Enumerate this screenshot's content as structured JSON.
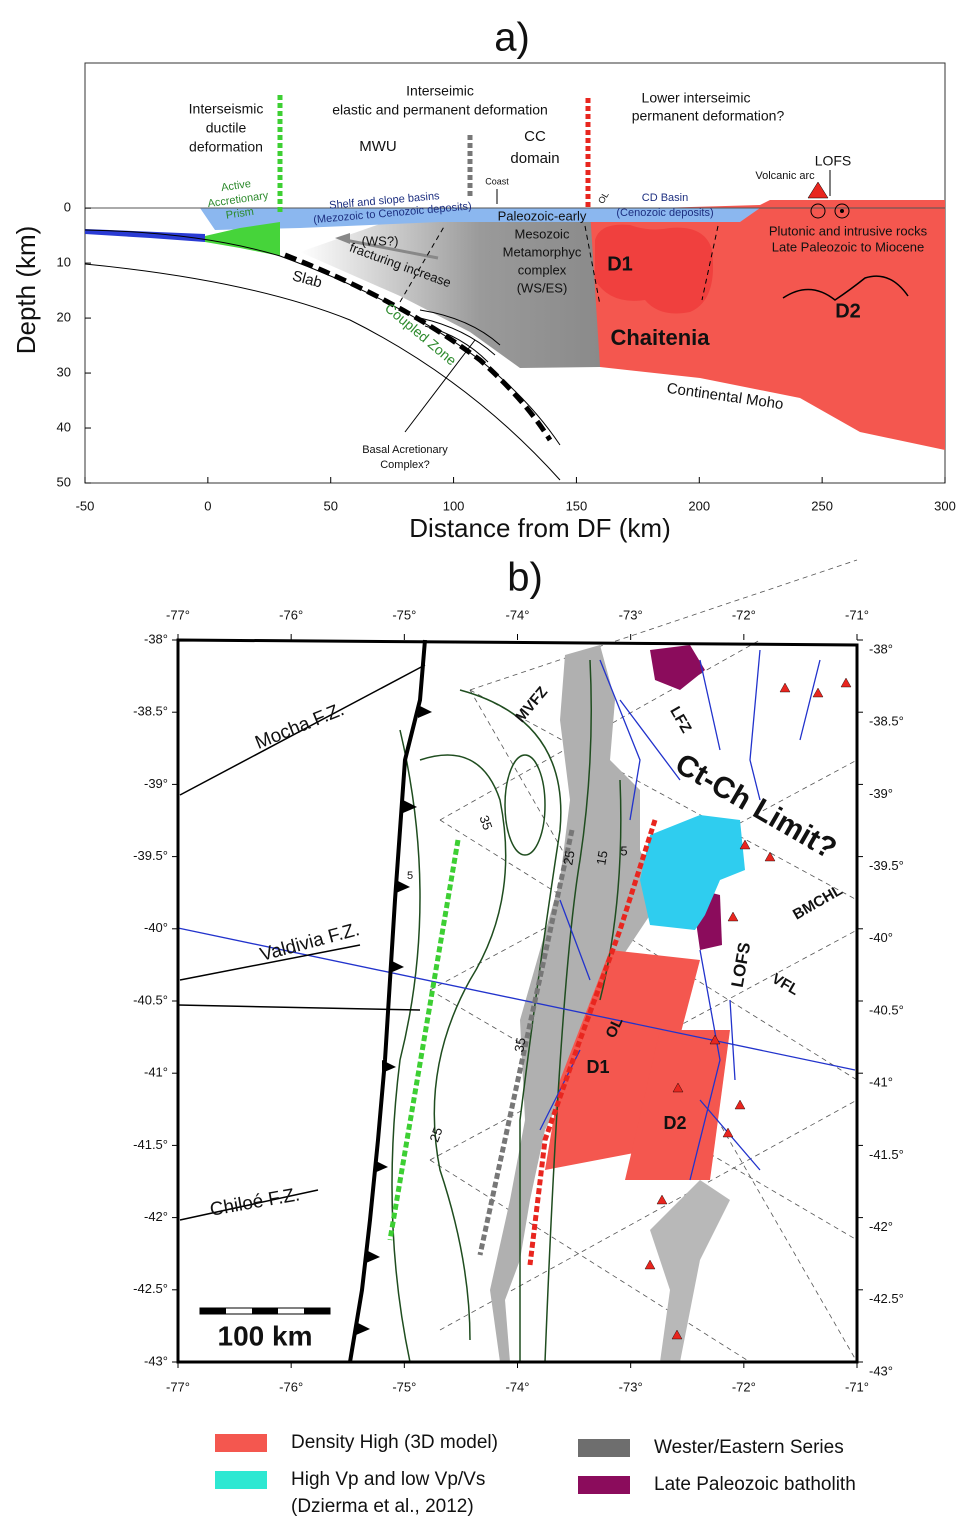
{
  "panel_a": {
    "label": "a)",
    "xlabel": "Distance from DF (km)",
    "ylabel": "Depth (km)",
    "xlim": [
      -50,
      300
    ],
    "ylim": [
      -26.4,
      50
    ],
    "xticks": [
      -50,
      0,
      50,
      100,
      150,
      200,
      250,
      300
    ],
    "yticks": [
      0,
      10,
      20,
      30,
      40,
      50
    ],
    "texts": {
      "ductile": [
        "Interseismic",
        "ductile",
        "deformation"
      ],
      "elastic": [
        "Interseimic",
        "elastic and permanent deformation"
      ],
      "mwu": "MWU",
      "cc": [
        "CC",
        "domain"
      ],
      "lower": [
        "Lower interseimic",
        "permanent deformation?"
      ],
      "lofs": "LOFS",
      "volcanic_arc": "Volcanic arc",
      "coast": "Coast",
      "prism": [
        "Active",
        "Accretionary",
        "Prism"
      ],
      "shelf": [
        "Shelf and slope basins",
        "(Mezozoic to Cenozoic deposits)"
      ],
      "ol": "OL",
      "cd_basin": [
        "CD Basin",
        "(Cenozoic deposits)"
      ],
      "complex": [
        "Paleozoic-early",
        "Mesozoic",
        "Metamorphyc",
        "complex",
        "(WS/ES)"
      ],
      "plutonic": [
        "Plutonic and  intrusive rocks",
        "Late Paleozoic to Miocene"
      ],
      "ws": "(WS?)",
      "fracturing": "fracturing increase",
      "d1": "D1",
      "d2": "D2",
      "slab": "Slab",
      "coupled": "Coupled Zone",
      "chaitenia": "Chaitenia",
      "moho": "Continental Moho",
      "basal": [
        "Basal Acretionary",
        "Complex?"
      ]
    }
  },
  "panel_b": {
    "label": "b)",
    "lonlim": [
      -77,
      -71
    ],
    "latlim": [
      -38,
      -43
    ],
    "lon_ticks": [
      {
        "value": -77,
        "label": "-77°"
      },
      {
        "value": -76,
        "label": "-76°"
      },
      {
        "value": -75,
        "label": "-75°"
      },
      {
        "value": -74,
        "label": "-74°"
      },
      {
        "value": -73,
        "label": "-73°"
      },
      {
        "value": -72,
        "label": "-72°"
      },
      {
        "value": -71,
        "label": "-71°"
      }
    ],
    "lat_ticks": [
      {
        "value": -38,
        "label": "-38°"
      },
      {
        "value": -38.5,
        "label": "-38.5°"
      },
      {
        "value": -39,
        "label": "-39°"
      },
      {
        "value": -39.5,
        "label": "-39.5°"
      },
      {
        "value": -40,
        "label": "-40°"
      },
      {
        "value": -40.5,
        "label": "-40.5°"
      },
      {
        "value": -41,
        "label": "-41°"
      },
      {
        "value": -41.5,
        "label": "-41.5°"
      },
      {
        "value": -42,
        "label": "-42°"
      },
      {
        "value": -42.5,
        "label": "-42.5°"
      },
      {
        "value": -43,
        "label": "-43°"
      }
    ],
    "texts": {
      "mocha": "Mocha F.Z.",
      "valdivia": "Valdivia F.Z.",
      "chiloe": "Chiloé F.Z.",
      "mvfz": "MVFZ",
      "lfz": "LFZ",
      "limit": "Ct-Ch Limit?",
      "bmchl": "BMCHL",
      "lofs": "LOFS",
      "vfl": "VFL",
      "ol": "OL",
      "d1": "D1",
      "d2": "D2",
      "scale": "100 km",
      "c35a": "35",
      "c25a": "25",
      "c15": "15",
      "c5a": "5",
      "c5b": "5",
      "c35b": "35",
      "c25b": "25"
    }
  },
  "legend": [
    {
      "color": "#f4574f",
      "lines": [
        "Density High (3D model)"
      ]
    },
    {
      "color": "#2ee8d2",
      "lines": [
        "High Vp and low Vp/Vs",
        "(Dzierma et al., 2012)"
      ]
    },
    {
      "color": "#6e6e6e",
      "lines": [
        "Wester/Eastern Series"
      ]
    },
    {
      "color": "#8b0c5c",
      "lines": [
        "Late Paleozoic batholith"
      ]
    }
  ]
}
